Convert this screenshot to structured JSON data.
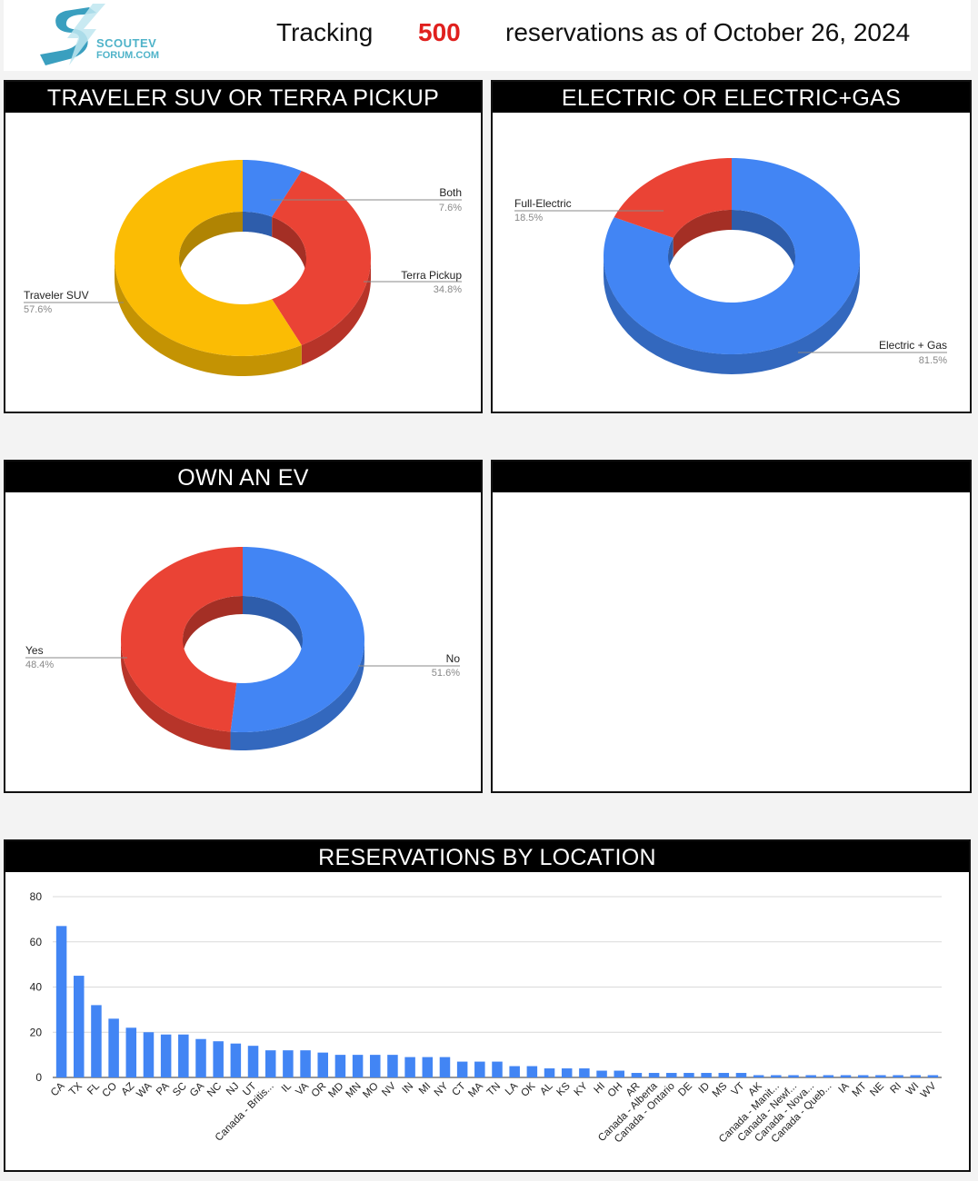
{
  "header": {
    "logo_line1": "SCOUTEV",
    "logo_line2": "FORUM.COM",
    "prefix": "Tracking",
    "count": "500",
    "suffix": "reservations as of October 26, 2024"
  },
  "colors": {
    "red": "#ea4335",
    "blue": "#4285f4",
    "yellow": "#fbbc04",
    "accent_count": "#e0201e"
  },
  "panels": {
    "model": {
      "title": "TRAVELER SUV OR TERRA PICKUP"
    },
    "power": {
      "title": "ELECTRIC OR ELECTRIC+GAS"
    },
    "ev": {
      "title": "OWN AN EV"
    },
    "empty": {
      "title": ""
    },
    "location": {
      "title": "RESERVATIONS BY LOCATION"
    }
  },
  "chart_data": [
    {
      "type": "pie",
      "title": "TRAVELER SUV OR TERRA PICKUP",
      "slices": [
        {
          "label": "Both",
          "value": 7.6,
          "display": "7.6%",
          "color": "#4285f4"
        },
        {
          "label": "Terra Pickup",
          "value": 34.8,
          "display": "34.8%",
          "color": "#ea4335"
        },
        {
          "label": "Traveler SUV",
          "value": 57.6,
          "display": "57.6%",
          "color": "#fbbc04"
        }
      ]
    },
    {
      "type": "pie",
      "title": "ELECTRIC OR ELECTRIC+GAS",
      "slices": [
        {
          "label": "Electric + Gas",
          "value": 81.5,
          "display": "81.5%",
          "color": "#4285f4"
        },
        {
          "label": "Full-Electric",
          "value": 18.5,
          "display": "18.5%",
          "color": "#ea4335"
        }
      ]
    },
    {
      "type": "pie",
      "title": "OWN AN EV",
      "slices": [
        {
          "label": "No",
          "value": 51.6,
          "display": "51.6%",
          "color": "#4285f4"
        },
        {
          "label": "Yes",
          "value": 48.4,
          "display": "48.4%",
          "color": "#ea4335"
        }
      ]
    },
    {
      "type": "bar",
      "title": "RESERVATIONS BY LOCATION",
      "ylim": [
        0,
        80
      ],
      "yticks": [
        0,
        20,
        40,
        60,
        80
      ],
      "grid": true,
      "color": "#4285f4",
      "categories": [
        "CA",
        "TX",
        "FL",
        "CO",
        "AZ",
        "WA",
        "PA",
        "SC",
        "GA",
        "NC",
        "NJ",
        "UT",
        "Canada - Britis...",
        "IL",
        "VA",
        "OR",
        "MD",
        "MN",
        "MO",
        "NV",
        "IN",
        "MI",
        "NY",
        "CT",
        "MA",
        "TN",
        "LA",
        "OK",
        "AL",
        "KS",
        "KY",
        "HI",
        "OH",
        "AR",
        "Canada - Alberta",
        "Canada - Ontario",
        "DE",
        "ID",
        "MS",
        "VT",
        "AK",
        "Canada - Manit...",
        "Canada - Newf...",
        "Canada - Nova...",
        "Canada - Queb...",
        "IA",
        "MT",
        "NE",
        "RI",
        "WI",
        "WV"
      ],
      "values": [
        67,
        45,
        32,
        26,
        22,
        20,
        19,
        19,
        17,
        16,
        15,
        14,
        12,
        12,
        12,
        11,
        10,
        10,
        10,
        10,
        9,
        9,
        9,
        7,
        7,
        7,
        5,
        5,
        4,
        4,
        4,
        3,
        3,
        2,
        2,
        2,
        2,
        2,
        2,
        2,
        1,
        1,
        1,
        1,
        1,
        1,
        1,
        1,
        1,
        1,
        1
      ]
    }
  ]
}
